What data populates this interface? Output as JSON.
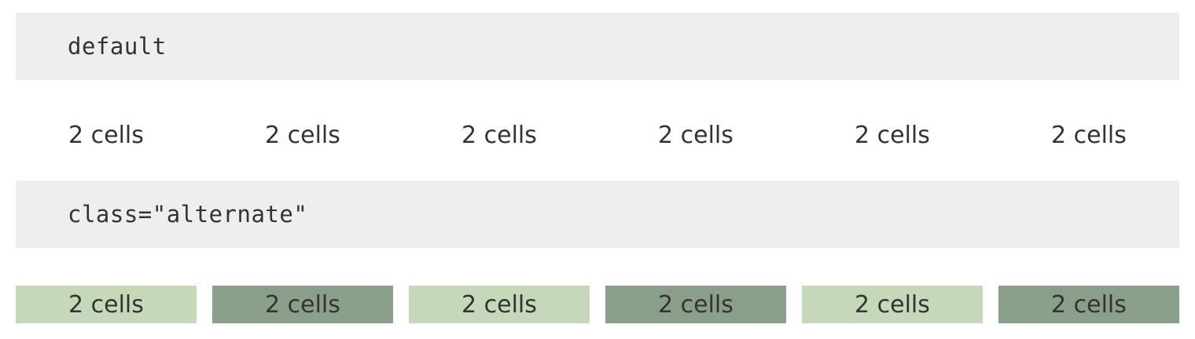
{
  "sections": [
    {
      "code_label": "default",
      "cells": [
        "2 cells",
        "2 cells",
        "2 cells",
        "2 cells",
        "2 cells",
        "2 cells"
      ]
    },
    {
      "code_label": "class=\"alternate\"",
      "cells": [
        "2 cells",
        "2 cells",
        "2 cells",
        "2 cells",
        "2 cells",
        "2 cells"
      ],
      "cell_colors": [
        "#c5d8b8",
        "#8a9f89"
      ]
    }
  ]
}
